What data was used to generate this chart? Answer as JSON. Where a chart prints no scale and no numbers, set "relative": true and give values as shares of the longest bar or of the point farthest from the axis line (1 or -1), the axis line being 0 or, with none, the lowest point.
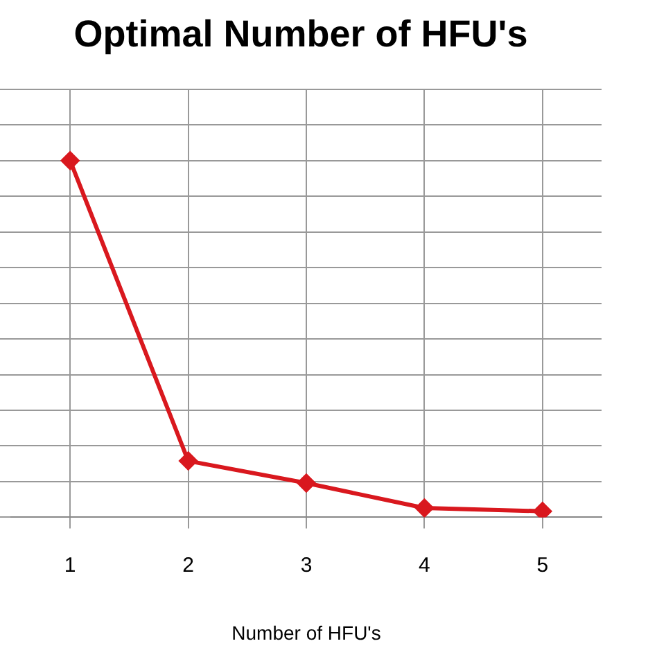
{
  "chart_data": {
    "type": "line",
    "title": "Optimal Number of HFU's",
    "xlabel": "Number of HFU's",
    "categories": [
      "1",
      "2",
      "3",
      "4",
      "5"
    ],
    "series": [
      {
        "color": "#d9181e",
        "values": [
          1,
          0.158,
          0.096,
          0.026,
          0.017
        ]
      }
    ],
    "relative": true,
    "grid": true,
    "legend": false,
    "marker": "diamond",
    "line_style": "solid"
  }
}
